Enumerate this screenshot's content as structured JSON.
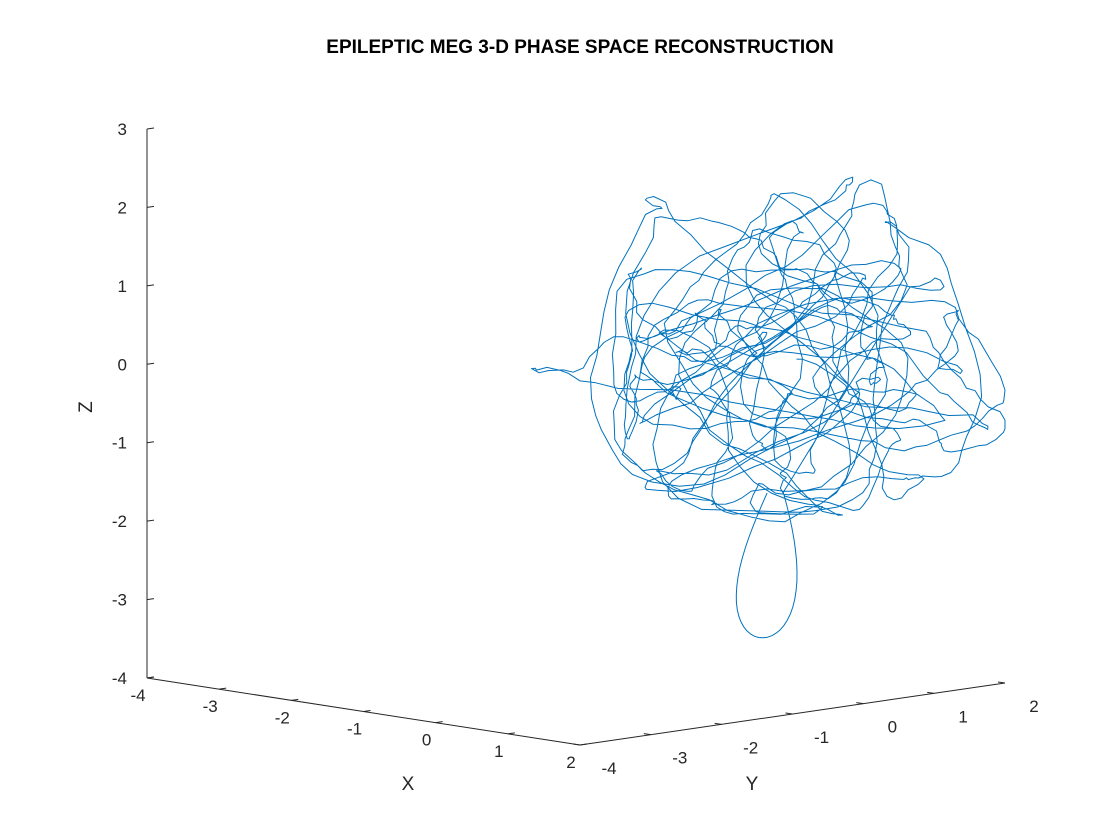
{
  "chart_data": {
    "type": "line3d",
    "title": "EPILEPTIC MEG 3-D PHASE SPACE RECONSTRUCTION",
    "xlabel": "X",
    "ylabel": "Y",
    "zlabel": "Z",
    "xlim": [
      -4,
      2
    ],
    "ylim": [
      -4,
      2
    ],
    "zlim": [
      -4,
      3
    ],
    "x_ticks": [
      "-4",
      "-3",
      "-2",
      "-1",
      "0",
      "1",
      "2"
    ],
    "y_ticks": [
      "-4",
      "-3",
      "-2",
      "-1",
      "0",
      "1",
      "2"
    ],
    "z_ticks": [
      "-4",
      "-3",
      "-2",
      "-1",
      "0",
      "1",
      "2",
      "3"
    ],
    "grid": false,
    "series": [
      {
        "name": "",
        "color": "#0072bd",
        "trajectory": {
          "x_center": 0.5,
          "y_center": 0.6,
          "z_center": 0.1,
          "x_range": [
            -2.0,
            2.0
          ],
          "y_range": [
            -2.0,
            2.0
          ],
          "z_range": [
            -3.4,
            2.3
          ]
        }
      }
    ]
  }
}
